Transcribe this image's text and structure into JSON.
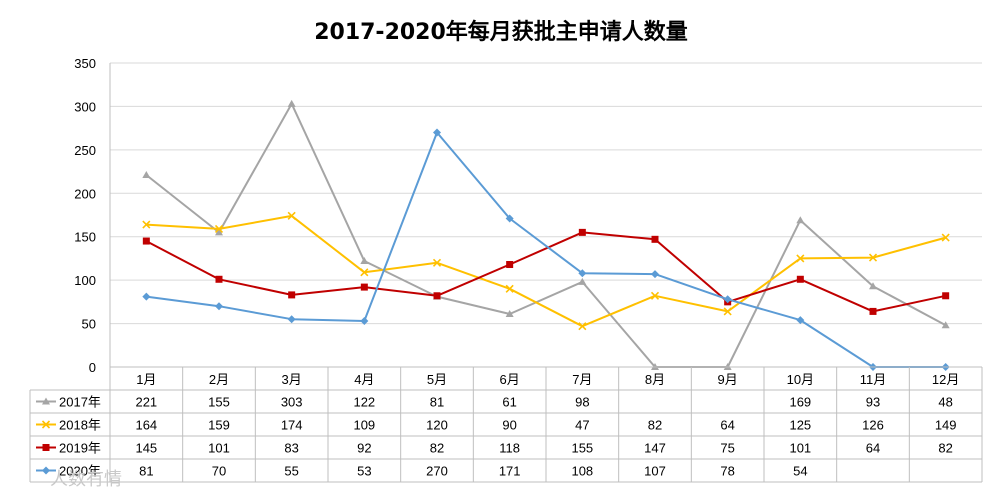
{
  "chart_data": {
    "type": "line",
    "title": "2017-2020年每月获批主申请人数量",
    "categories": [
      "1月",
      "2月",
      "3月",
      "4月",
      "5月",
      "6月",
      "7月",
      "8月",
      "9月",
      "10月",
      "11月",
      "12月"
    ],
    "ylim": [
      0,
      350
    ],
    "yticks": [
      0,
      50,
      100,
      150,
      200,
      250,
      300,
      350
    ],
    "grid": true,
    "data_table": true,
    "series": [
      {
        "name": "2017年",
        "color": "#a5a5a5",
        "marker": "triangle",
        "values": [
          221,
          155,
          303,
          122,
          81,
          61,
          98,
          0,
          0,
          169,
          93,
          48
        ],
        "table_values": [
          "221",
          "155",
          "303",
          "122",
          "81",
          "61",
          "98",
          "",
          "",
          "169",
          "93",
          "48"
        ]
      },
      {
        "name": "2018年",
        "color": "#ffc000",
        "marker": "x",
        "values": [
          164,
          159,
          174,
          109,
          120,
          90,
          47,
          82,
          64,
          125,
          126,
          149
        ],
        "table_values": [
          "164",
          "159",
          "174",
          "109",
          "120",
          "90",
          "47",
          "82",
          "64",
          "125",
          "126",
          "149"
        ]
      },
      {
        "name": "2019年",
        "color": "#c00000",
        "marker": "square",
        "values": [
          145,
          101,
          83,
          92,
          82,
          118,
          155,
          147,
          75,
          101,
          64,
          82
        ],
        "table_values": [
          "145",
          "101",
          "83",
          "92",
          "82",
          "118",
          "155",
          "147",
          "75",
          "101",
          "64",
          "82"
        ]
      },
      {
        "name": "2020年",
        "color": "#5b9bd5",
        "marker": "diamond",
        "values": [
          81,
          70,
          55,
          53,
          270,
          171,
          108,
          107,
          78,
          54,
          0,
          0
        ],
        "table_values": [
          "81",
          "70",
          "55",
          "53",
          "270",
          "171",
          "108",
          "107",
          "78",
          "54",
          "",
          ""
        ]
      }
    ]
  },
  "watermark": "人数有情"
}
